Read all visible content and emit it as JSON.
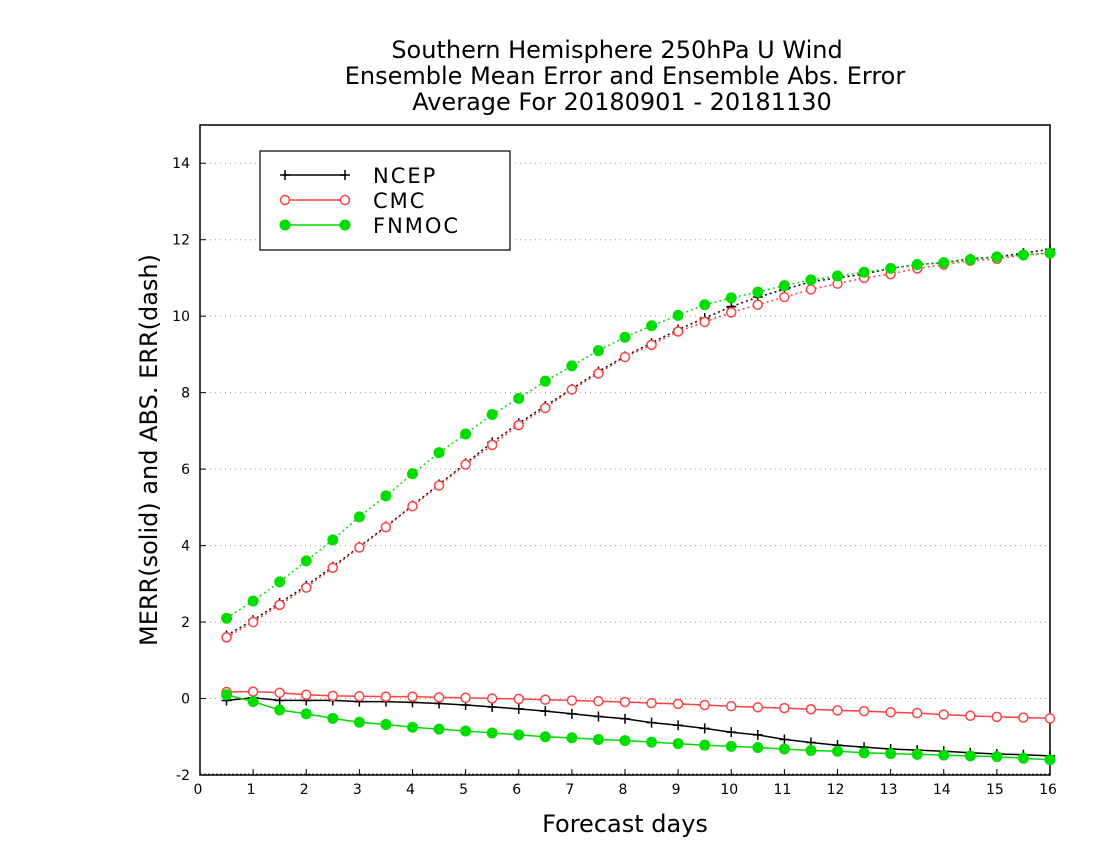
{
  "chart_data": {
    "type": "line",
    "title": [
      "Southern Hemisphere 250hPa U Wind",
      "Ensemble Mean Error and Ensemble Abs. Error",
      "Average For 20180901 - 20181130"
    ],
    "xlabel": "Forecast days",
    "ylabel": "MERR(solid) and ABS. ERR(dash)",
    "xlim": [
      0,
      16
    ],
    "ylim": [
      -2,
      15
    ],
    "xticks": [
      "0",
      "1",
      "2",
      "3",
      "4",
      "5",
      "6",
      "7",
      "8",
      "9",
      "10",
      "11",
      "12",
      "13",
      "14",
      "15",
      "16"
    ],
    "yticks": [
      "-2",
      "0",
      "2",
      "4",
      "6",
      "8",
      "10",
      "12",
      "14"
    ],
    "grid": "horizontal dotted",
    "legend_position": "top-left",
    "x": [
      0.5,
      1,
      1.5,
      2,
      2.5,
      3,
      3.5,
      4,
      4.5,
      5,
      5.5,
      6,
      6.5,
      7,
      7.5,
      8,
      8.5,
      9,
      9.5,
      10,
      10.5,
      11,
      11.5,
      12,
      12.5,
      13,
      13.5,
      14,
      14.5,
      15,
      15.5,
      16
    ],
    "series": [
      {
        "name": "NCEP",
        "color": "#000000",
        "marker": "plus",
        "merr": [
          -0.05,
          0.02,
          -0.05,
          -0.05,
          -0.05,
          -0.08,
          -0.08,
          -0.1,
          -0.13,
          -0.17,
          -0.22,
          -0.27,
          -0.33,
          -0.4,
          -0.47,
          -0.53,
          -0.63,
          -0.7,
          -0.78,
          -0.88,
          -0.95,
          -1.07,
          -1.15,
          -1.22,
          -1.27,
          -1.32,
          -1.35,
          -1.38,
          -1.42,
          -1.45,
          -1.47,
          -1.5
        ],
        "abs_err": [
          1.65,
          2.05,
          2.5,
          2.95,
          3.45,
          3.97,
          4.5,
          5.05,
          5.6,
          6.15,
          6.7,
          7.2,
          7.65,
          8.1,
          8.55,
          8.95,
          9.3,
          9.65,
          9.95,
          10.25,
          10.5,
          10.7,
          10.9,
          11.0,
          11.1,
          11.25,
          11.35,
          11.4,
          11.5,
          11.55,
          11.65,
          11.75
        ]
      },
      {
        "name": "CMC",
        "color": "#ff4040",
        "marker": "open-circle",
        "merr": [
          0.17,
          0.18,
          0.15,
          0.1,
          0.07,
          0.06,
          0.05,
          0.05,
          0.03,
          0.02,
          0.0,
          -0.01,
          -0.03,
          -0.05,
          -0.07,
          -0.09,
          -0.12,
          -0.14,
          -0.17,
          -0.2,
          -0.23,
          -0.25,
          -0.28,
          -0.31,
          -0.33,
          -0.36,
          -0.38,
          -0.42,
          -0.45,
          -0.48,
          -0.5,
          -0.52
        ],
        "abs_err": [
          1.6,
          2.0,
          2.45,
          2.9,
          3.42,
          3.95,
          4.48,
          5.03,
          5.57,
          6.12,
          6.63,
          7.15,
          7.6,
          8.08,
          8.5,
          8.93,
          9.25,
          9.6,
          9.85,
          10.1,
          10.3,
          10.5,
          10.7,
          10.85,
          11.0,
          11.1,
          11.25,
          11.35,
          11.45,
          11.5,
          11.6,
          11.65
        ]
      },
      {
        "name": "FNMOC",
        "color": "#00dd00",
        "marker": "filled-circle",
        "merr": [
          0.1,
          -0.08,
          -0.3,
          -0.4,
          -0.52,
          -0.62,
          -0.68,
          -0.75,
          -0.8,
          -0.85,
          -0.9,
          -0.95,
          -1.0,
          -1.03,
          -1.07,
          -1.1,
          -1.14,
          -1.18,
          -1.22,
          -1.25,
          -1.28,
          -1.32,
          -1.36,
          -1.38,
          -1.42,
          -1.44,
          -1.46,
          -1.48,
          -1.5,
          -1.52,
          -1.56,
          -1.6
        ],
        "abs_err": [
          2.1,
          2.55,
          3.05,
          3.6,
          4.15,
          4.75,
          5.3,
          5.88,
          6.43,
          6.92,
          7.43,
          7.85,
          8.3,
          8.7,
          9.1,
          9.45,
          9.75,
          10.02,
          10.3,
          10.48,
          10.63,
          10.8,
          10.95,
          11.05,
          11.15,
          11.25,
          11.35,
          11.4,
          11.48,
          11.55,
          11.6,
          11.65
        ]
      }
    ]
  }
}
